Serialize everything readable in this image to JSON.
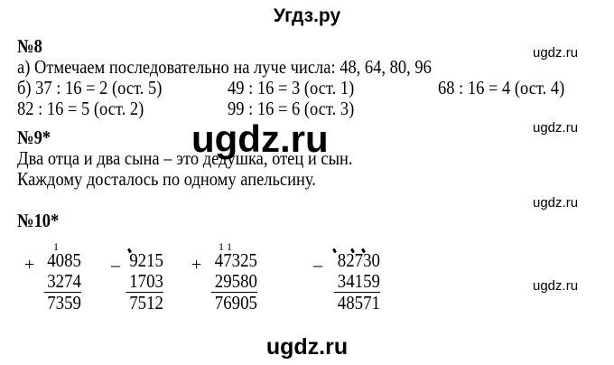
{
  "header": {
    "title": "Угдз.ру"
  },
  "watermark": {
    "small": "ugdz.ru",
    "big": "ugdz.ru",
    "bottom": "ugdz.ru"
  },
  "task8": {
    "heading": "№8",
    "line_a": "а) Отмечаем последовательно на луче числа: 48, 64, 80, 96",
    "line_b": [
      "б) 37 : 16 = 2 (ост. 5)",
      "49 : 16 = 3 (ост. 1)",
      "68 : 16 = 4 (ост. 4)"
    ],
    "line_c": [
      "82 : 16 = 5 (ост. 2)",
      "99 : 16 = 6 (ост. 3)"
    ]
  },
  "task9": {
    "heading": "№9*",
    "lines": [
      "Два отца и два сына – это дедушка, отец и сын.",
      "Каждому досталось по одному апельсину."
    ]
  },
  "task10": {
    "heading": "№10*",
    "columns": [
      {
        "op": "+",
        "carry": "1",
        "a": "4085",
        "b": "3274",
        "result": "7359"
      },
      {
        "op": "_",
        "a": "9215",
        "b": "1703",
        "result": "7512"
      },
      {
        "op": "+",
        "carry": "1   1",
        "a": "47325",
        "b": "29580",
        "result": "76905"
      },
      {
        "op": "_",
        "a": "82730",
        "b": "34159",
        "result": "48571"
      }
    ]
  }
}
